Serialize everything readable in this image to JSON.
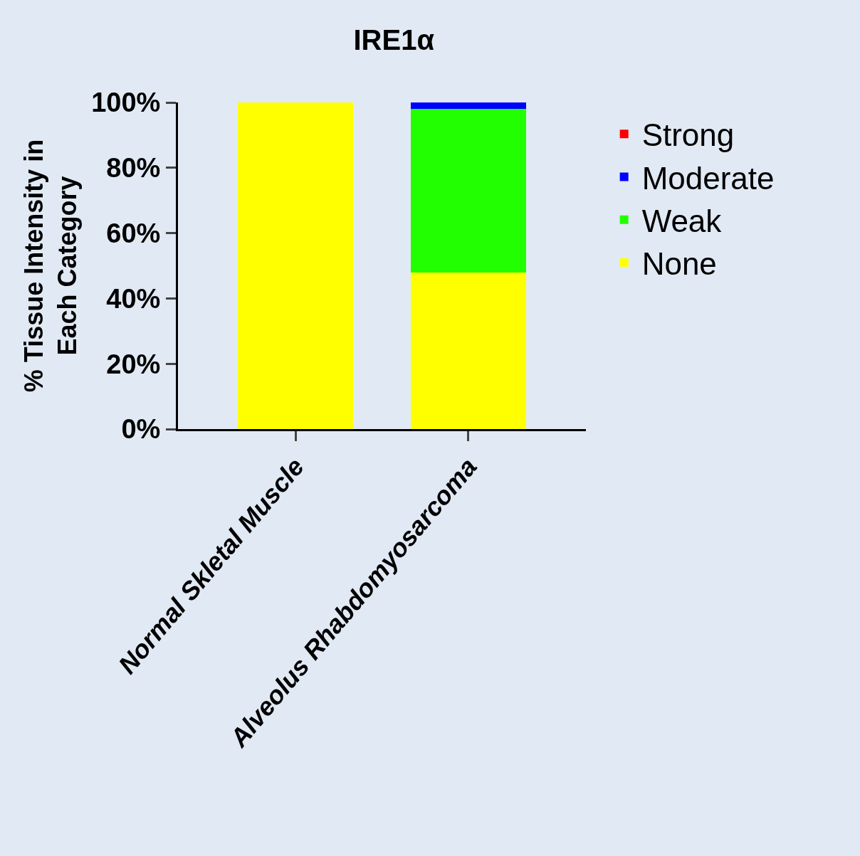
{
  "chart_data": {
    "type": "bar",
    "title": "IRE1α",
    "ylabel": "% Tissue Intensity in Each Category",
    "categories": [
      "Normal Skletal Muscle",
      "Alveolus Rhabdomyosarcoma"
    ],
    "stacked": true,
    "series": [
      {
        "name": "None",
        "color": "#ffff00",
        "values": [
          100,
          48
        ]
      },
      {
        "name": "Weak",
        "color": "#22ff00",
        "values": [
          0,
          50
        ]
      },
      {
        "name": "Moderate",
        "color": "#0000ff",
        "values": [
          0,
          2
        ]
      },
      {
        "name": "Strong",
        "color": "#ff0000",
        "values": [
          0,
          0
        ]
      }
    ],
    "ylim": [
      0,
      100
    ],
    "yticks": [
      {
        "value": 0,
        "label": "0%"
      },
      {
        "value": 20,
        "label": "20%"
      },
      {
        "value": 40,
        "label": "40%"
      },
      {
        "value": 60,
        "label": "60%"
      },
      {
        "value": 80,
        "label": "80%"
      },
      {
        "value": 100,
        "label": "100%"
      }
    ],
    "grid": false,
    "legend": "top right"
  }
}
